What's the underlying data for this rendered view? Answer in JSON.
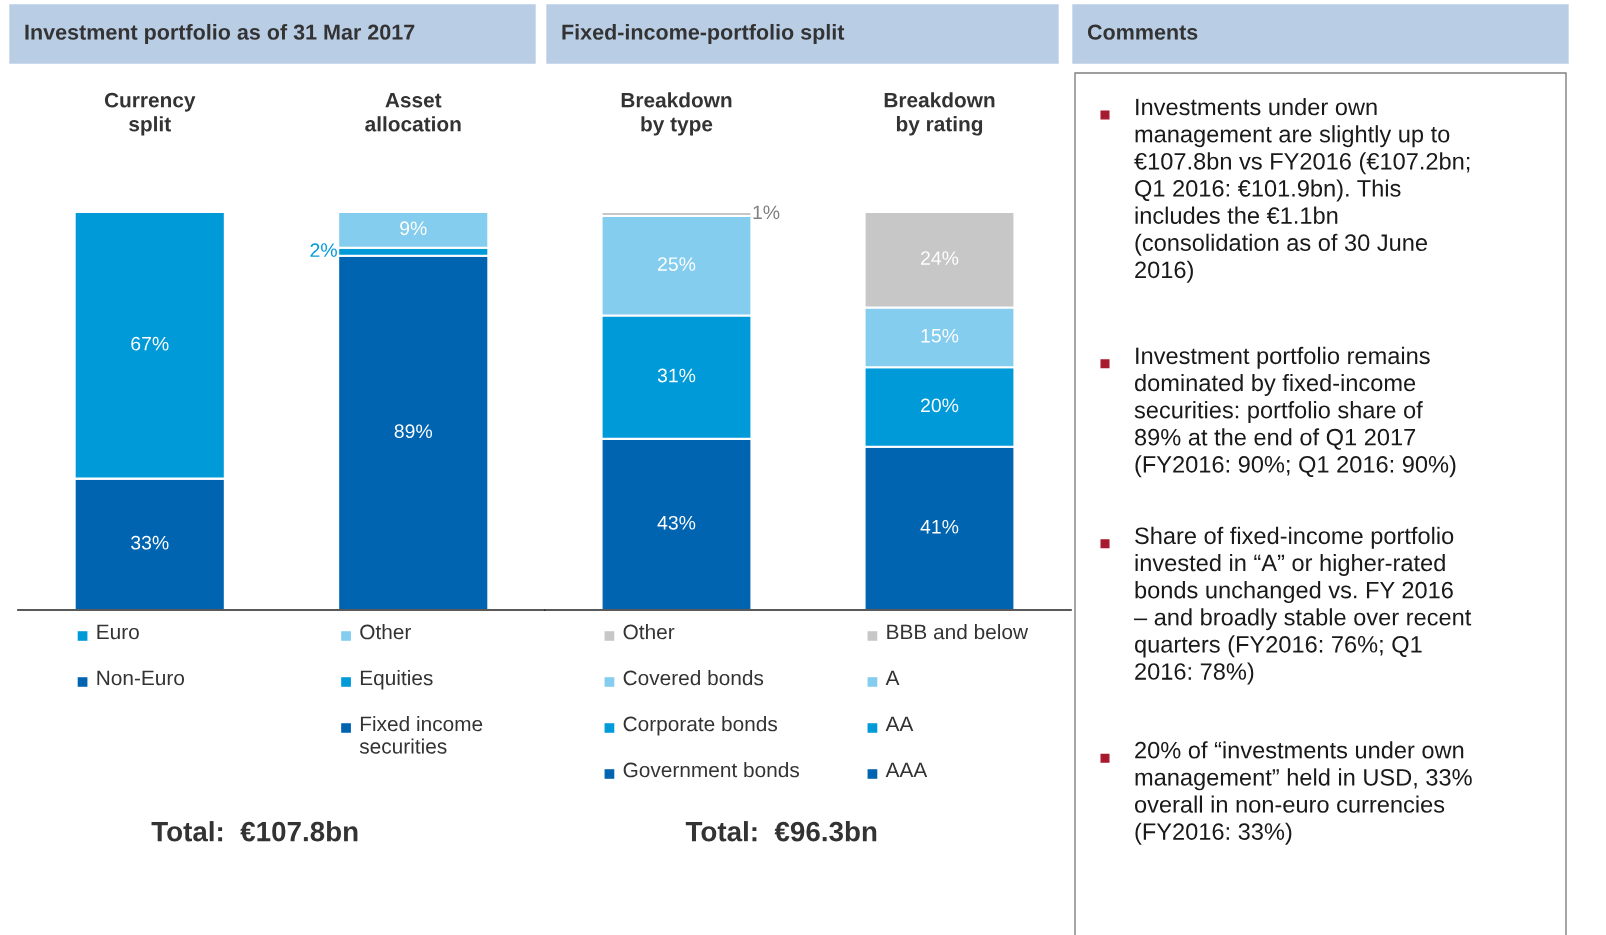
{
  "chart_data": [
    {
      "type": "bar",
      "title": "Investment portfolio as of 31 Mar 2017",
      "categories": [
        "Currency\nsplit",
        "Asset\nallocation"
      ],
      "stacked": true,
      "legend": "bottom",
      "tick_labels": "x",
      "series": [
        {
          "name": "Non-Euro",
          "color": "#0064b0",
          "values": [
            33,
            null
          ],
          "value_labels": [
            "33%",
            null
          ]
        },
        {
          "name": "Euro",
          "color": "#009ad9",
          "values": [
            67,
            null
          ],
          "value_labels": [
            "67%",
            null
          ]
        },
        {
          "name": "Fixed income\nsecurities",
          "color": "#0064b0",
          "values": [
            null,
            89
          ],
          "value_labels": [
            null,
            "89%"
          ]
        },
        {
          "name": "Equities",
          "color": "#009ad9",
          "values": [
            null,
            2
          ],
          "value_labels": [
            null,
            "2%"
          ]
        },
        {
          "name": "Other",
          "color": "#84cdee",
          "values": [
            null,
            9
          ],
          "value_labels": [
            null,
            "9%"
          ]
        }
      ],
      "annotations": [
        "Total:  €107.8bn"
      ]
    },
    {
      "type": "bar",
      "title": "Fixed-income-portfolio split",
      "categories": [
        "Breakdown\nby type",
        "Breakdown\nby rating"
      ],
      "stacked": true,
      "legend": "bottom",
      "tick_labels": "x",
      "series": [
        {
          "name": "Government bonds",
          "color": "#0064b0",
          "values": [
            43,
            null
          ],
          "value_labels": [
            "43%",
            null
          ]
        },
        {
          "name": "Corporate bonds",
          "color": "#009ad9",
          "values": [
            31,
            null
          ],
          "value_labels": [
            "31%",
            null
          ]
        },
        {
          "name": "Covered bonds",
          "color": "#84cdee",
          "values": [
            25,
            null
          ],
          "value_labels": [
            "25%",
            null
          ]
        },
        {
          "name": "Other",
          "color": "#c7c7c7",
          "values": [
            1,
            null
          ],
          "value_labels": [
            "1%",
            null
          ]
        },
        {
          "name": "AAA",
          "color": "#0064b0",
          "values": [
            null,
            41
          ],
          "value_labels": [
            null,
            "41%"
          ]
        },
        {
          "name": "AA",
          "color": "#009ad9",
          "values": [
            null,
            20
          ],
          "value_labels": [
            null,
            "20%"
          ]
        },
        {
          "name": "A",
          "color": "#84cdee",
          "values": [
            null,
            15
          ],
          "value_labels": [
            null,
            "15%"
          ]
        },
        {
          "name": "BBB and below",
          "color": "#c7c7c7",
          "values": [
            null,
            24
          ],
          "value_labels": [
            null,
            "24%"
          ]
        }
      ],
      "annotations": [
        "Total:  €96.3bn"
      ]
    },
    {
      "type": "other",
      "title": "Comments",
      "annotations": [
        "Investments under own\nmanagement are slightly up to\n€107.8bn vs FY2016 (€107.2bn;\nQ1 2016: €101.9bn). This\nincludes the €1.1bn\n(consolidation as of 30 June\n2016)",
        "Investment portfolio remains\ndominated by fixed-income\nsecurities: portfolio share of\n89% at the end of Q1 2017\n(FY2016: 90%; Q1 2016: 90%)",
        "Share of fixed-income portfolio\ninvested in “A” or higher-rated\nbonds unchanged vs. FY 2016\n– and broadly stable over recent\nquarters (FY2016: 76%; Q1\n2016: 78%)",
        "20% of “investments under own\nmanagement” held in USD, 33%\noverall in non-euro currencies\n(FY2016: 33%)"
      ]
    }
  ]
}
